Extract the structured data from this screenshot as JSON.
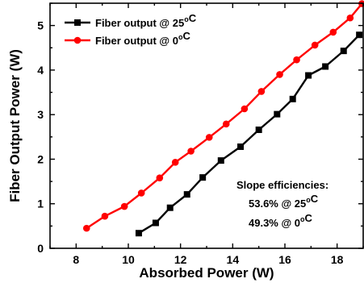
{
  "chart_data": {
    "type": "line",
    "xlabel": "Absorbed Power (W)",
    "ylabel": "Fiber Output Power (W)",
    "xlim": [
      7.0,
      19.0
    ],
    "ylim": [
      0.0,
      5.5
    ],
    "xticks": [
      8,
      10,
      12,
      14,
      16,
      18
    ],
    "yticks": [
      0,
      1,
      2,
      3,
      4,
      5
    ],
    "grid": false,
    "legend_position": "top-left",
    "series": [
      {
        "name": "Fiber output @ 25°C",
        "color": "#000000",
        "marker": "square",
        "x": [
          10.4,
          11.05,
          11.6,
          12.25,
          12.85,
          13.55,
          14.3,
          15.0,
          15.7,
          16.3,
          16.9,
          17.55,
          18.25,
          18.85
        ],
        "y": [
          0.34,
          0.57,
          0.91,
          1.21,
          1.59,
          1.97,
          2.28,
          2.66,
          3.01,
          3.35,
          3.88,
          4.08,
          4.43,
          4.79
        ]
      },
      {
        "name": "Fiber output @   0°C",
        "color": "#ff0000",
        "marker": "circle",
        "x": [
          8.4,
          9.1,
          9.85,
          10.5,
          11.2,
          11.8,
          12.4,
          13.1,
          13.75,
          14.45,
          15.1,
          15.8,
          16.45,
          17.15,
          17.85,
          18.5,
          18.95
        ],
        "y": [
          0.45,
          0.72,
          0.94,
          1.24,
          1.58,
          1.93,
          2.18,
          2.49,
          2.79,
          3.13,
          3.52,
          3.9,
          4.23,
          4.56,
          4.85,
          5.17,
          5.49
        ]
      }
    ],
    "annotations": {
      "heading": "Slope efficiencies:",
      "lines": [
        "53.6% @ 25°C",
        "49.3% @   0°C"
      ]
    }
  }
}
